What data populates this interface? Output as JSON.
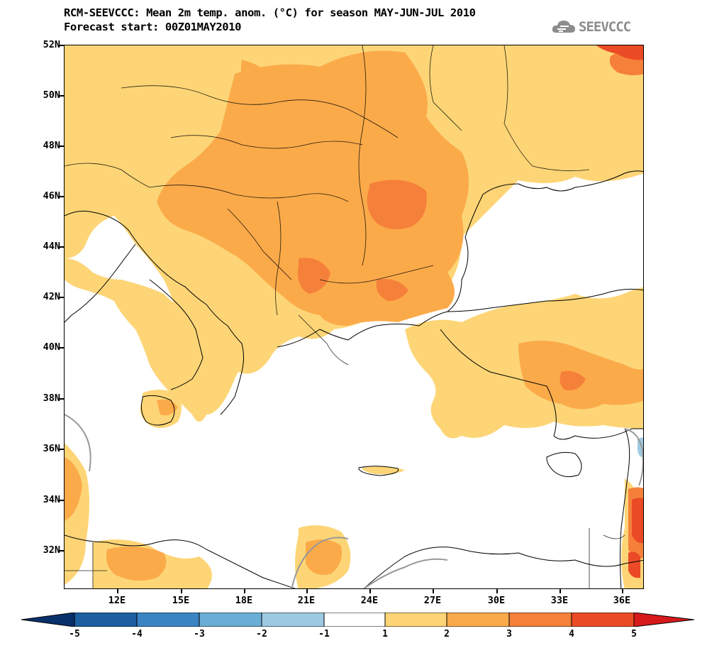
{
  "title": {
    "line1": "RCM-SEEVCCC: Mean 2m temp. anom. (°C) for season MAY-JUN-JUL 2010",
    "line2": "Forecast start: 00Z01MAY2010"
  },
  "logo": {
    "text": "SEEVCCC",
    "icon": "cloud-icon"
  },
  "axes": {
    "lat_labels": [
      "52N",
      "50N",
      "48N",
      "46N",
      "44N",
      "42N",
      "40N",
      "38N",
      "36N",
      "34N",
      "32N"
    ],
    "lon_labels": [
      "12E",
      "15E",
      "18E",
      "21E",
      "24E",
      "27E",
      "30E",
      "33E",
      "36E"
    ]
  },
  "colorbar": {
    "labels": [
      "-5",
      "-4",
      "-3",
      "-2",
      "-1",
      "1",
      "2",
      "3",
      "4",
      "5"
    ],
    "bins": [
      {
        "range": "<-5",
        "color": "#08306b"
      },
      {
        "range": "-5..-4",
        "color": "#1d5fa0"
      },
      {
        "range": "-4..-3",
        "color": "#3b84c4"
      },
      {
        "range": "-3..-2",
        "color": "#6aaed6"
      },
      {
        "range": "-2..-1",
        "color": "#9ecae1"
      },
      {
        "range": "-1..1",
        "color": "#ffffff"
      },
      {
        "range": "1..2",
        "color": "#fdd576"
      },
      {
        "range": "2..3",
        "color": "#fbaa4a"
      },
      {
        "range": "3..4",
        "color": "#f5803a"
      },
      {
        "range": "4..5",
        "color": "#eb4a26"
      },
      {
        "range": ">5",
        "color": "#d7191c"
      }
    ]
  },
  "colors": {
    "c1_2": "#fdd576",
    "c2_3": "#fbaa4a",
    "c3_4": "#f5803a",
    "c4_5": "#eb4a26",
    "cgt5": "#d7191c",
    "neg": "#9ecae1"
  }
}
